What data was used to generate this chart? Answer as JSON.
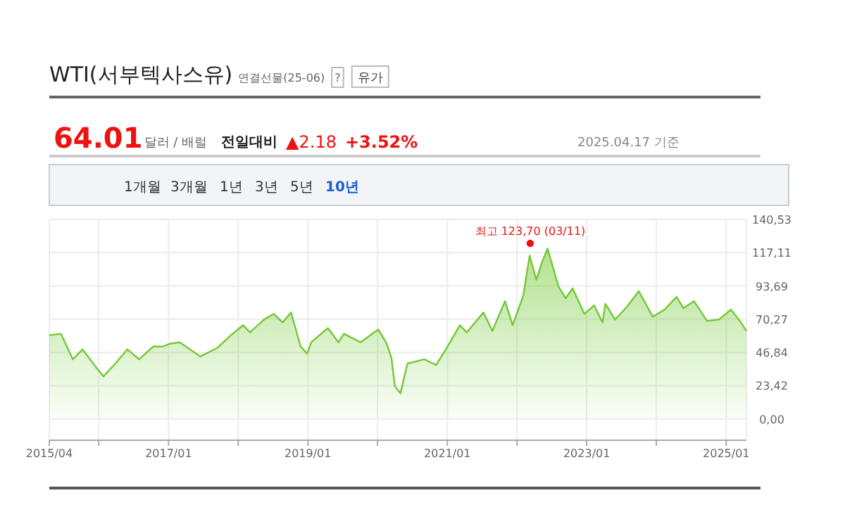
{
  "chart_data": {
    "type": "area",
    "title": "WTI(서부텍사스유)",
    "subtitle": "연결선물(25-06)",
    "annotations": [
      "?",
      "유가",
      "64.01",
      "달러 / 배럴",
      "전일대비",
      "▲2.18",
      "+3.52%",
      "2025.04.17 기준",
      "1개월",
      "3개월",
      "1년",
      "3년",
      "5년",
      "10년"
    ],
    "x": [
      "2015-04-17",
      "2015-06-17",
      "2015-08-18",
      "2015-10-08",
      "2015-12-20",
      "2016-01-26",
      "2016-03-28",
      "2016-05-30",
      "2016-07-31",
      "2016-10-12",
      "2016-12-02",
      "2017-01-08",
      "2017-02-28",
      "2017-06-17",
      "2017-09-13",
      "2017-11-24",
      "2018-01-26",
      "2018-03-04",
      "2018-05-16",
      "2018-07-06",
      "2018-08-22",
      "2018-10-05",
      "2018-11-24",
      "2018-12-28",
      "2019-01-19",
      "2019-04-16",
      "2019-06-10",
      "2019-07-09",
      "2019-10-04",
      "2020-01-05",
      "2020-02-18",
      "2020-03-14",
      "2020-04-01",
      "2020-04-30",
      "2020-06-06",
      "2020-09-02",
      "2020-11-03",
      "2020-12-24",
      "2021-03-08",
      "2021-04-13",
      "2021-07-09",
      "2021-08-25",
      "2021-10-30",
      "2021-12-09",
      "2022-02-03",
      "2022-03-08",
      "2022-04-12",
      "2022-05-11",
      "2022-06-10",
      "2022-08-07",
      "2022-09-13",
      "2022-10-19",
      "2022-12-20",
      "2023-02-09",
      "2023-03-25",
      "2023-04-09",
      "2023-05-30",
      "2023-07-31",
      "2023-10-01",
      "2023-12-13",
      "2024-02-13",
      "2024-04-16",
      "2024-05-22",
      "2024-07-16",
      "2024-09-23",
      "2024-11-24",
      "2025-01-26",
      "2025-03-14",
      "2025-04-17"
    ],
    "series": [
      {
        "color": "#72c934",
        "values": [
          59,
          60,
          42,
          49,
          36,
          30,
          39,
          49,
          42,
          51,
          51,
          53,
          54,
          44,
          50,
          59,
          66,
          61,
          70,
          74,
          68,
          75,
          51,
          46,
          54,
          64,
          54,
          60,
          54,
          63,
          53,
          43,
          23,
          18,
          39,
          42,
          38,
          49,
          66,
          61,
          75,
          62,
          83,
          66,
          87,
          115,
          98,
          110,
          120,
          93,
          85,
          92,
          74,
          80,
          68,
          81,
          70,
          79,
          90,
          72,
          77,
          86,
          78,
          83,
          69,
          70,
          77,
          69,
          62
        ]
      },
      {
        "type": "scatter",
        "color": "#ee1111",
        "x": [
          "2022-03-11"
        ],
        "values": [
          123.7
        ],
        "value_labels": [
          "최고 123,70 (03/11)"
        ]
      }
    ],
    "xlim": [
      "2015-04-17",
      "2025-04-17"
    ],
    "ylim": [
      -15,
      140.53
    ],
    "xticks": [
      {
        "value": "2015-04-17",
        "label": "2015/04"
      },
      {
        "value": "2016-01-01",
        "label": null
      },
      {
        "value": "2017-01-01",
        "label": "2017/01"
      },
      {
        "value": "2018-01-01",
        "label": null
      },
      {
        "value": "2019-01-01",
        "label": "2019/01"
      },
      {
        "value": "2020-01-01",
        "label": null
      },
      {
        "value": "2021-01-01",
        "label": "2021/01"
      },
      {
        "value": "2022-01-01",
        "label": null
      },
      {
        "value": "2023-01-01",
        "label": "2023/01"
      },
      {
        "value": "2024-01-01",
        "label": null
      },
      {
        "value": "2025-01-01",
        "label": "2025/01"
      }
    ],
    "yticks": [
      {
        "value": 0,
        "label": "0,00"
      },
      {
        "value": 23.42,
        "label": "23,42"
      },
      {
        "value": 46.84,
        "label": "46,84"
      },
      {
        "value": 70.27,
        "label": "70,27"
      },
      {
        "value": 93.69,
        "label": "93,69"
      },
      {
        "value": 117.11,
        "label": "117,11"
      },
      {
        "value": 140.53,
        "label": "140,53"
      }
    ],
    "grid": true
  }
}
